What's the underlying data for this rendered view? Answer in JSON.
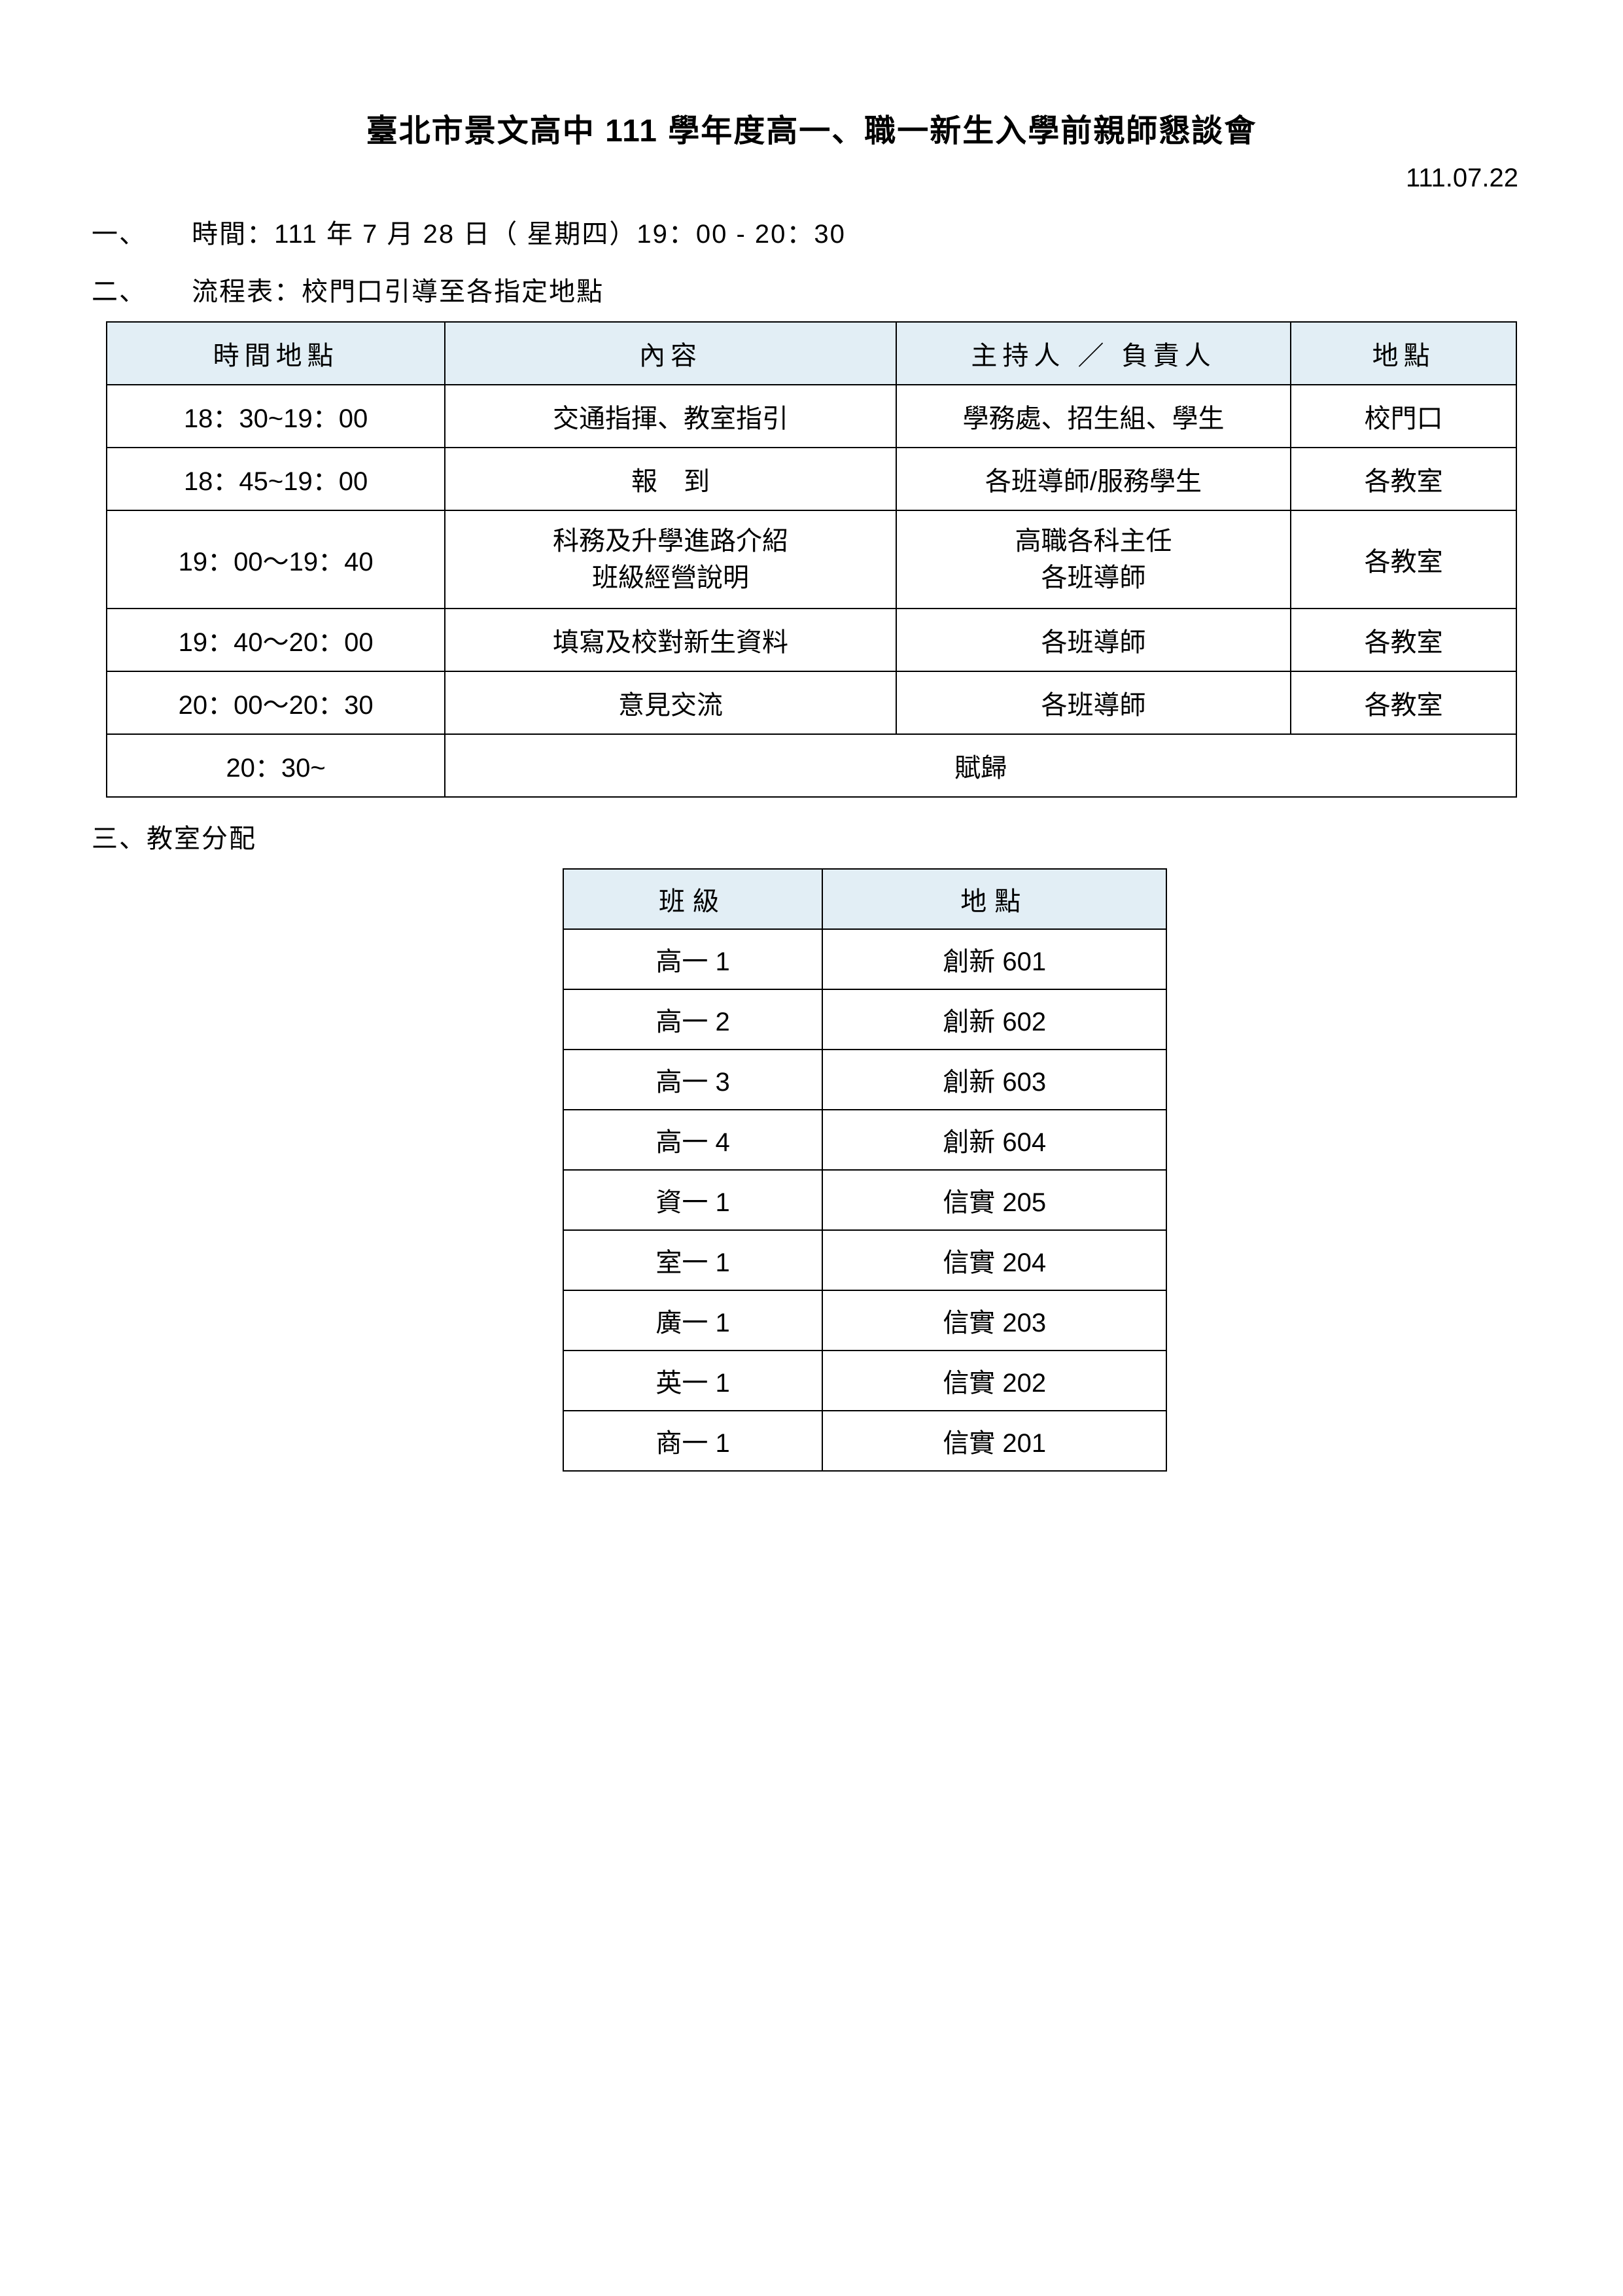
{
  "title": "臺北市景文高中 111 學年度高一、職一新生入學前親師懇談會",
  "date_issued": "111.07.22",
  "section1_num": "一、",
  "section1_text": "時間：111 年 7 月 28 日（ 星期四）19：00 - 20：30",
  "section2_num": "二、",
  "section2_text": "流程表：校門口引導至各指定地點",
  "section3_text": "三、教室分配",
  "schedule": {
    "header_bg": "#e2eef5",
    "border_color": "#000000",
    "columns": [
      "時間地點",
      "內容",
      "主持人 ／ 負責人",
      "地點"
    ],
    "rows": [
      {
        "time": "18：30~19：00",
        "content": "交通指揮、教室指引",
        "host": "學務處、招生組、學生",
        "place": "校門口"
      },
      {
        "time": "18：45~19：00",
        "content": "報　到",
        "host": "各班導師/服務學生",
        "place": "各教室"
      },
      {
        "time": "19：00～19：40",
        "content": "科務及升學進路介紹\n班級經營說明",
        "host": "高職各科主任\n各班導師",
        "place": "各教室"
      },
      {
        "time": "19：40～20：00",
        "content": "填寫及校對新生資料",
        "host": "各班導師",
        "place": "各教室"
      },
      {
        "time": "20：00～20：30",
        "content": "意見交流",
        "host": "各班導師",
        "place": "各教室"
      }
    ],
    "last_row": {
      "time": "20：30~",
      "merged": "賦歸"
    }
  },
  "classrooms": {
    "header_bg": "#e2eef5",
    "columns": [
      "班級",
      "地點"
    ],
    "rows": [
      {
        "class": "高一 1",
        "room": "創新 601"
      },
      {
        "class": "高一 2",
        "room": "創新 602"
      },
      {
        "class": "高一 3",
        "room": "創新 603"
      },
      {
        "class": "高一 4",
        "room": "創新 604"
      },
      {
        "class": "資一 1",
        "room": "信實 205"
      },
      {
        "class": "室一 1",
        "room": "信實 204"
      },
      {
        "class": "廣一 1",
        "room": "信實 203"
      },
      {
        "class": "英一 1",
        "room": "信實 202"
      },
      {
        "class": "商一 1",
        "room": "信實 201"
      }
    ]
  }
}
